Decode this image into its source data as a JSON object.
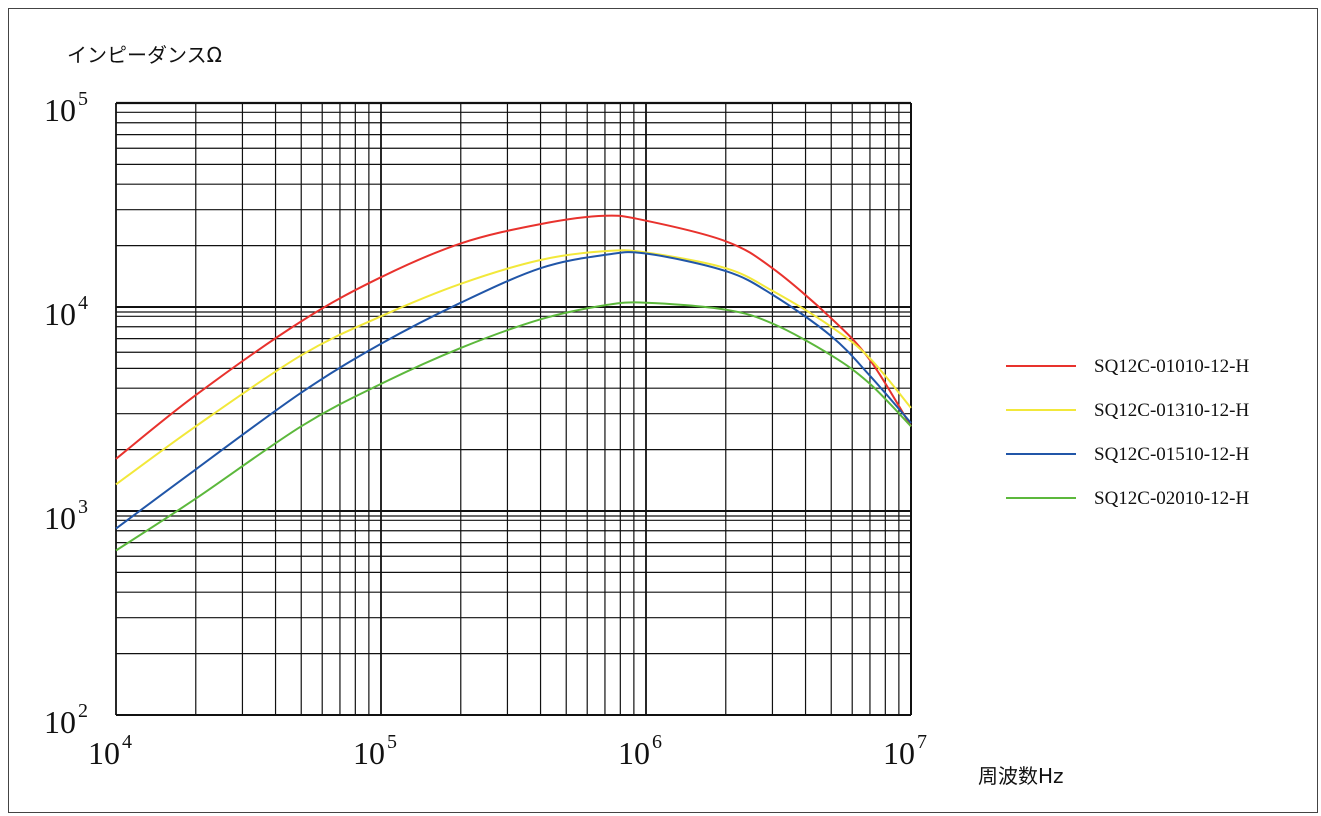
{
  "chart_data": {
    "type": "line",
    "x_scale": "log",
    "y_scale": "log",
    "xlabel": "周波数Hz",
    "ylabel": "インピーダンスΩ",
    "xlim": [
      10000,
      10000000
    ],
    "ylim": [
      100,
      100000
    ],
    "grid": true,
    "legend_position": "right",
    "x_ticks": [
      {
        "base": "10",
        "exp": "4"
      },
      {
        "base": "10",
        "exp": "5"
      },
      {
        "base": "10",
        "exp": "6"
      },
      {
        "base": "10",
        "exp": "7"
      }
    ],
    "y_ticks": [
      {
        "base": "10",
        "exp": "2"
      },
      {
        "base": "10",
        "exp": "3"
      },
      {
        "base": "10",
        "exp": "4"
      },
      {
        "base": "10",
        "exp": "5"
      }
    ],
    "series": [
      {
        "name": "SQ12C-01010-12-H",
        "color": "#e8322d",
        "x": [
          10000,
          20000,
          50000,
          100000,
          200000,
          400000,
          700000,
          1000000,
          2000000,
          3000000,
          5000000,
          7000000,
          10000000
        ],
        "y": [
          1800,
          3700,
          8500,
          14000,
          20500,
          25500,
          28000,
          26500,
          21000,
          15500,
          8800,
          5500,
          2600
        ]
      },
      {
        "name": "SQ12C-01310-12-H",
        "color": "#f2e83a",
        "x": [
          10000,
          20000,
          50000,
          100000,
          200000,
          400000,
          700000,
          1000000,
          2000000,
          3000000,
          5000000,
          7000000,
          10000000
        ],
        "y": [
          1350,
          2600,
          5800,
          9000,
          13000,
          17000,
          18800,
          18500,
          15500,
          12000,
          8000,
          5600,
          3200
        ]
      },
      {
        "name": "SQ12C-01510-12-H",
        "color": "#2156a8",
        "x": [
          10000,
          20000,
          50000,
          100000,
          200000,
          400000,
          700000,
          1000000,
          2000000,
          3000000,
          5000000,
          7000000,
          10000000
        ],
        "y": [
          820,
          1600,
          3800,
          6600,
          10500,
          15500,
          18000,
          18300,
          15000,
          11500,
          7200,
          4600,
          2700
        ]
      },
      {
        "name": "SQ12C-02010-12-H",
        "color": "#5cb83c",
        "x": [
          10000,
          20000,
          50000,
          100000,
          200000,
          400000,
          700000,
          1000000,
          2000000,
          3000000,
          5000000,
          7000000,
          10000000
        ],
        "y": [
          640,
          1150,
          2600,
          4200,
          6300,
          8700,
          10200,
          10500,
          9700,
          8300,
          5800,
          4200,
          2600
        ]
      }
    ]
  }
}
